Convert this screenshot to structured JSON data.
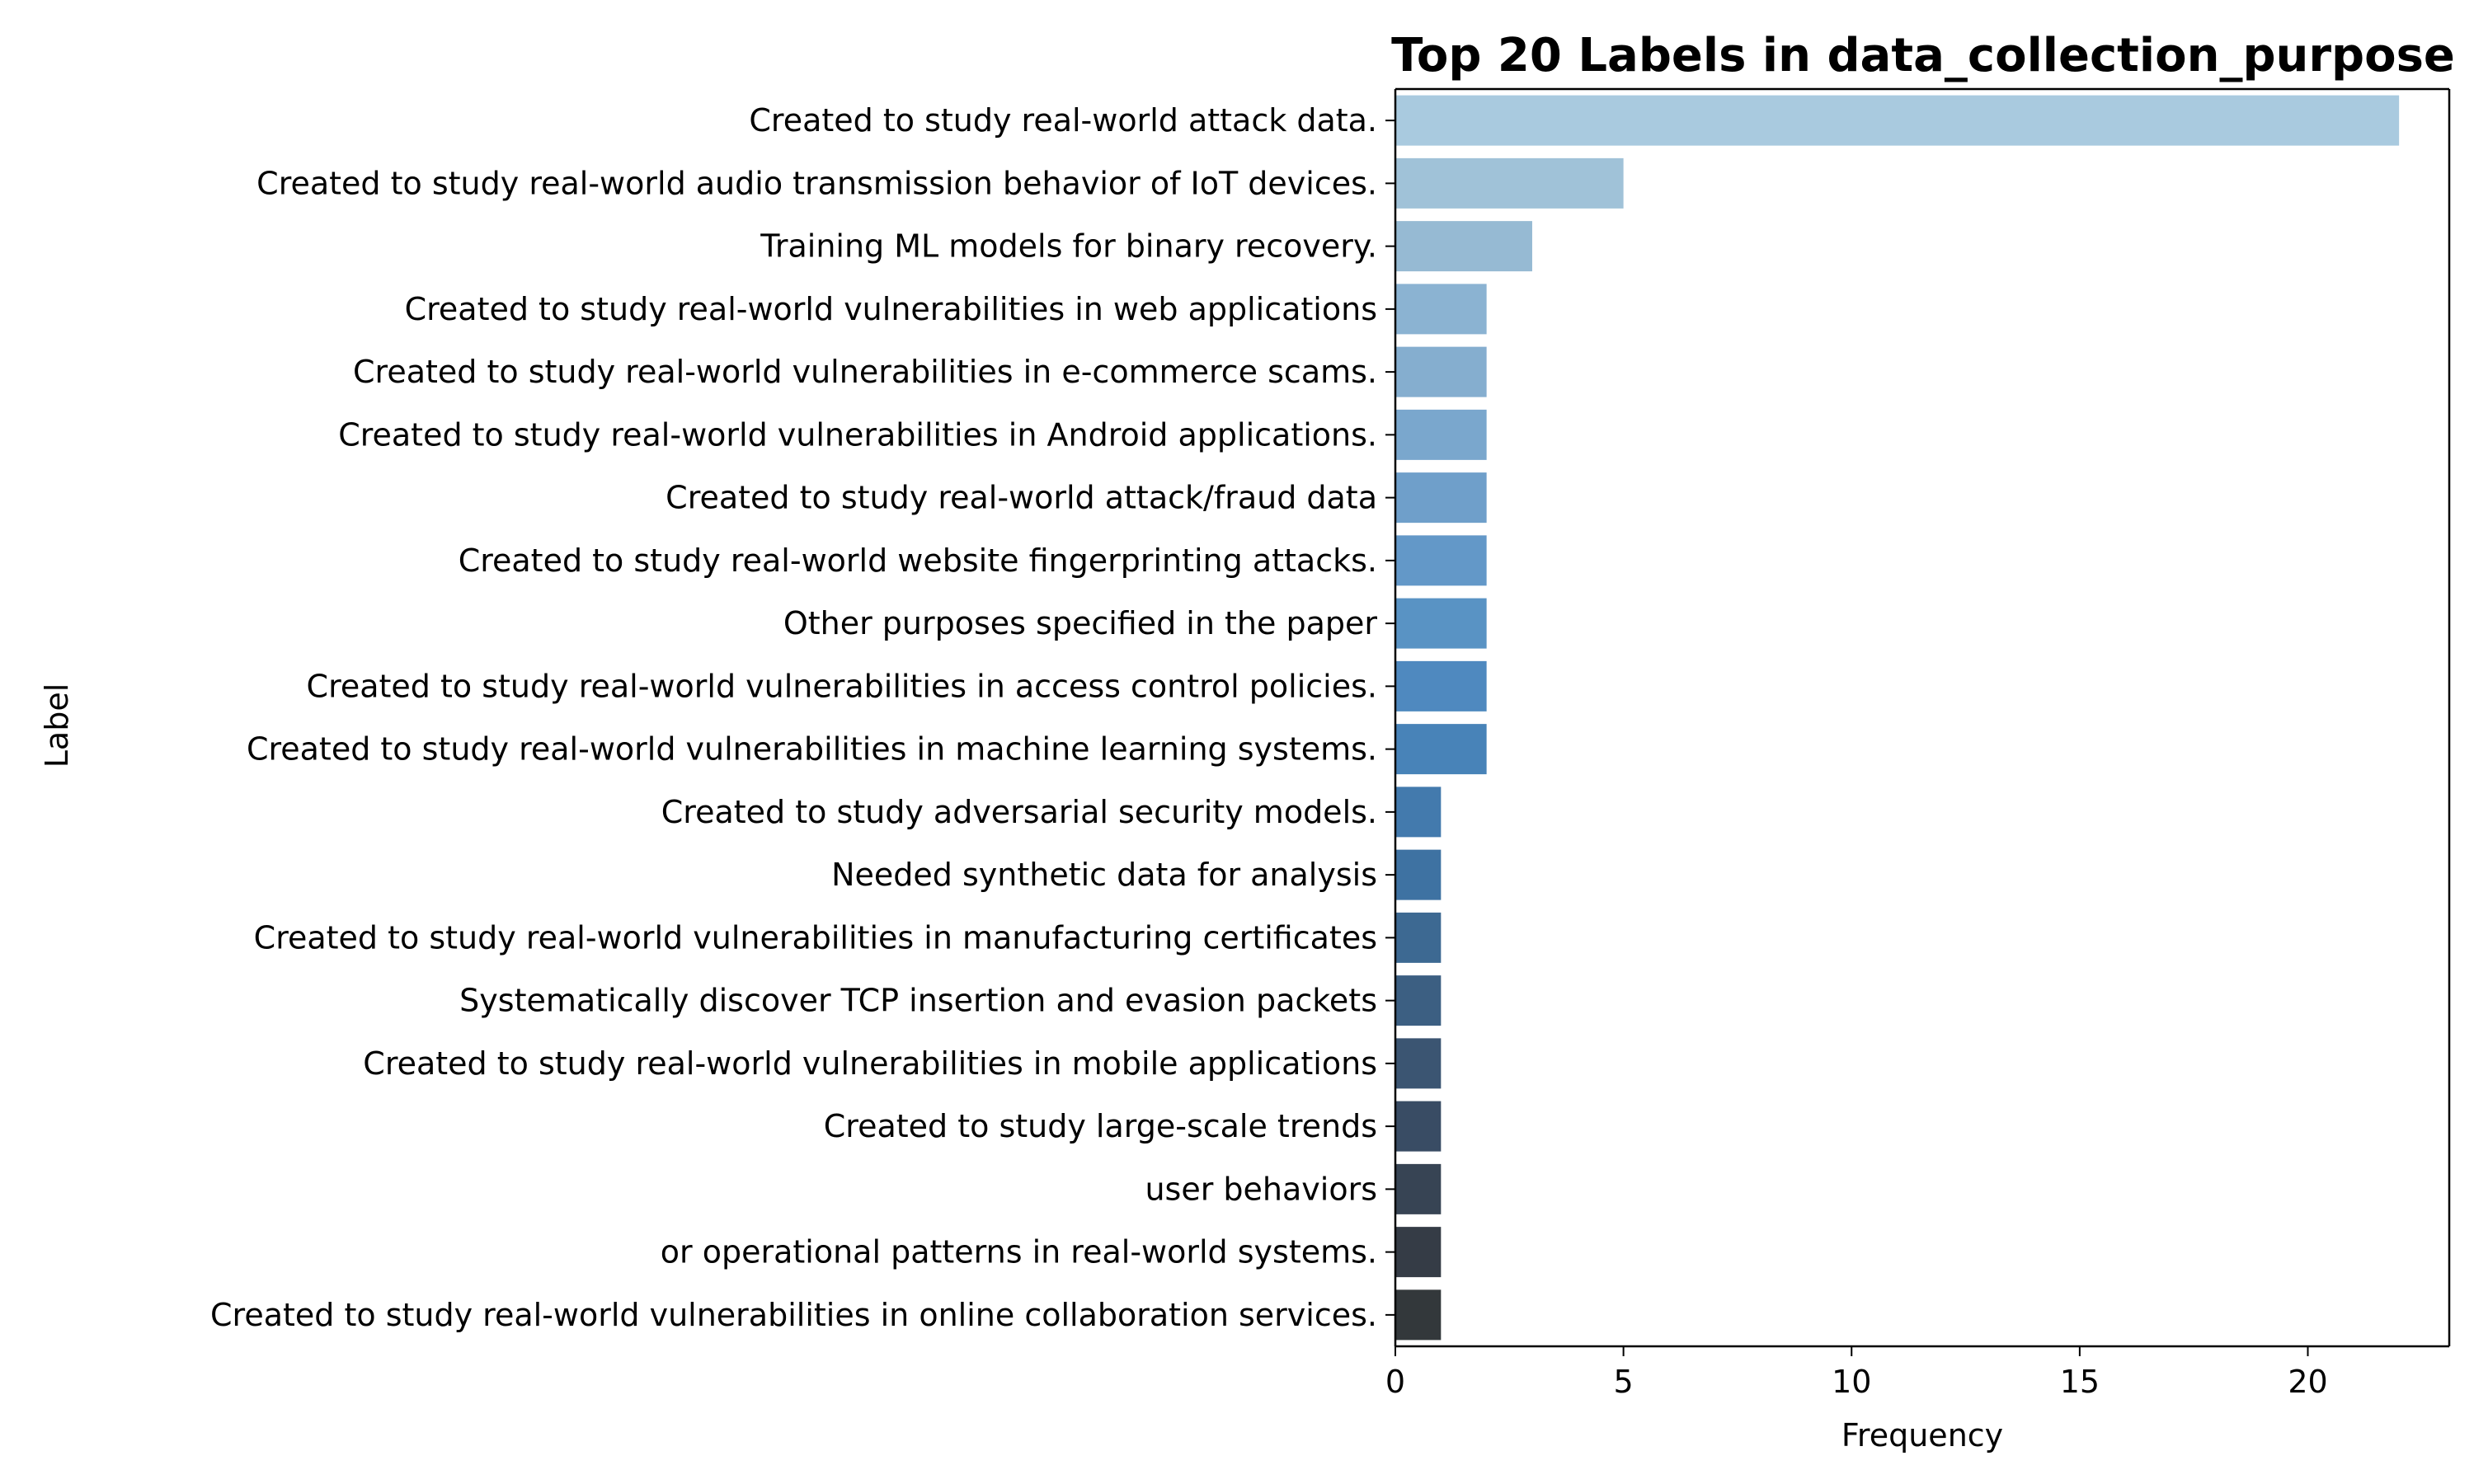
{
  "chart_data": {
    "type": "bar",
    "orientation": "horizontal",
    "title": "Top 20 Labels in data_collection_purpose",
    "xlabel": "Frequency",
    "ylabel": "Label",
    "xlim": [
      0,
      23.1
    ],
    "xticks": [
      0,
      5,
      10,
      15,
      20
    ],
    "grid": false,
    "categories": [
      "Created to study real-world attack data.",
      "Created to study real-world audio transmission behavior of IoT devices.",
      "Training ML models for binary recovery.",
      "Created to study real-world vulnerabilities in web applications",
      "Created to study real-world vulnerabilities in e-commerce scams.",
      "Created to study real-world vulnerabilities in Android applications.",
      "Created to study real-world attack/fraud data",
      "Created to study real-world website fingerprinting attacks.",
      "Other purposes specified in the paper",
      "Created to study real-world vulnerabilities in access control policies.",
      "Created to study real-world vulnerabilities in machine learning systems.",
      "Created to study adversarial security models.",
      "Needed synthetic data for analysis",
      "Created to study real-world vulnerabilities in manufacturing certificates",
      "Systematically discover TCP insertion and evasion packets",
      "Created to study real-world vulnerabilities in mobile applications",
      "Created to study large-scale trends",
      "user behaviors",
      "or operational patterns in real-world systems.",
      "Created to study real-world vulnerabilities in online collaboration services."
    ],
    "values": [
      22,
      5,
      3,
      2,
      2,
      2,
      2,
      2,
      2,
      2,
      2,
      1,
      1,
      1,
      1,
      1,
      1,
      1,
      1,
      1
    ],
    "colors": [
      "#a9cadf",
      "#a0c2d8",
      "#96bad3",
      "#8bb3d2",
      "#85aecf",
      "#7aa7cd",
      "#6f9fca",
      "#6398c8",
      "#5993c4",
      "#4f89bf",
      "#4883b8",
      "#437aad",
      "#3e72a2",
      "#3d6992",
      "#3c5f82",
      "#3b5572",
      "#394c64",
      "#374454",
      "#353c46",
      "#33383b"
    ]
  }
}
